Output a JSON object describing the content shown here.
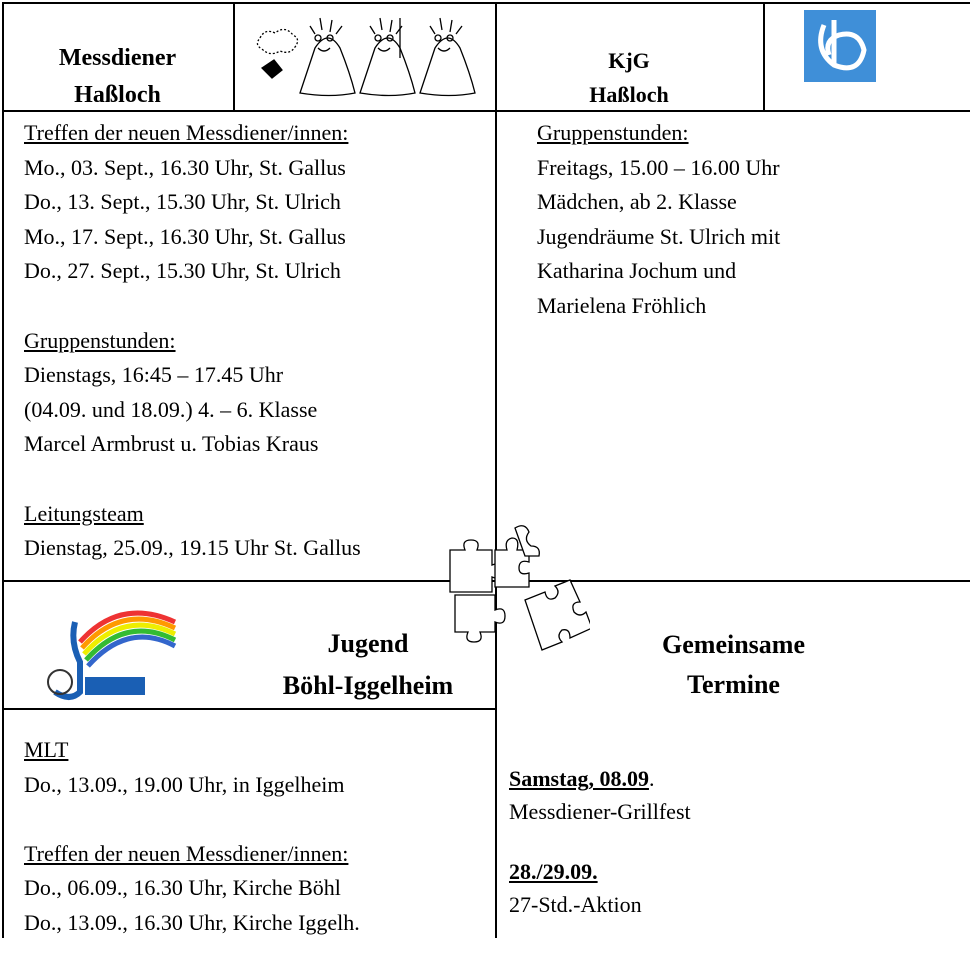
{
  "header": {
    "left_title": [
      "Messdiener",
      "Haßloch"
    ],
    "right_title": [
      "KjG",
      "Haßloch"
    ]
  },
  "messdiener": {
    "blocks": [
      {
        "heading": "Treffen der neuen Messdiener/innen:",
        "lines": [
          "Mo., 03. Sept., 16.30 Uhr, St. Gallus",
          "Do., 13. Sept., 15.30 Uhr, St. Ulrich",
          "Mo., 17. Sept., 16.30 Uhr, St. Gallus",
          "Do., 27. Sept., 15.30 Uhr, St. Ulrich"
        ]
      },
      {
        "heading": "Gruppenstunden:",
        "lines": [
          "Dienstags, 16:45 – 17.45 Uhr",
          "(04.09. und 18.09.) 4. – 6. Klasse",
          "Marcel Armbrust u. Tobias Kraus"
        ]
      },
      {
        "heading": "Leitungsteam",
        "lines": [
          "Dienstag, 25.09., 19.15 Uhr St. Gallus"
        ]
      }
    ]
  },
  "kjg": {
    "blocks": [
      {
        "heading": "Gruppenstunden:",
        "lines": [
          "Freitags, 15.00 – 16.00 Uhr",
          "Mädchen, ab 2. Klasse",
          "Jugendräume St. Ulrich mit",
          "Katharina Jochum  und",
          "Marielena Fröhlich"
        ]
      }
    ]
  },
  "jugend": {
    "title": [
      "Jugend",
      "Böhl-Iggelheim"
    ],
    "blocks": [
      {
        "heading": "MLT",
        "lines": [
          "Do., 13.09., 19.00 Uhr, in Iggelheim"
        ]
      },
      {
        "heading": "Treffen der neuen Messdiener/innen:",
        "lines": [
          "Do., 06.09., 16.30 Uhr, Kirche Böhl",
          "Do., 13.09., 16.30 Uhr, Kirche Iggelh."
        ]
      }
    ]
  },
  "gemeinsam": {
    "title": [
      "Gemeinsame",
      "Termine"
    ],
    "events": [
      {
        "date": "Samstag, 08.09",
        "suffix": ".",
        "label": "Messdiener-Grillfest"
      },
      {
        "date": "28./29.09.",
        "label": "27-Std.-Aktion"
      }
    ]
  }
}
